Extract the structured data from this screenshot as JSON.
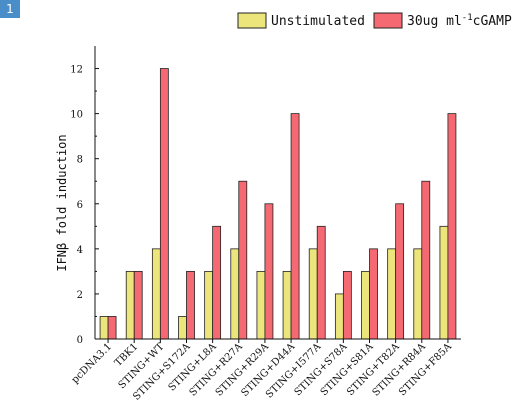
{
  "panel_label": "1",
  "chart_data": {
    "type": "bar",
    "categories": [
      "pcDNA3.1",
      "TBK1",
      "STING+WT",
      "STING+S172A",
      "STING+L8A",
      "STING+R27A",
      "STING+R29A",
      "STING+D44A",
      "STING+I577A",
      "STING+S78A",
      "STING+S81A",
      "STING+T82A",
      "STING+R84A",
      "STING+F85A"
    ],
    "series": [
      {
        "name": "Unstimulated",
        "values": [
          1,
          3,
          4,
          1,
          3,
          4,
          3,
          3,
          4,
          2,
          3,
          4,
          4,
          5
        ],
        "color": "#ece57c"
      },
      {
        "name": "30ug ml",
        "values": [
          1,
          3,
          12,
          3,
          5,
          7,
          6,
          10,
          5,
          3,
          4,
          6,
          7,
          10
        ],
        "color": "#f56a72"
      }
    ],
    "legend_suffix": "cGAMP",
    "legend_superscript": "-1",
    "ylabel": "IFNβ fold induction",
    "ylim": [
      0,
      13
    ],
    "yticks": [
      0,
      2,
      4,
      6,
      8,
      10,
      12
    ],
    "ytick_labels": [
      "0",
      "2",
      "4",
      "6",
      "8",
      "10",
      "12"
    ],
    "grid": false,
    "legend_position": "top-right"
  }
}
